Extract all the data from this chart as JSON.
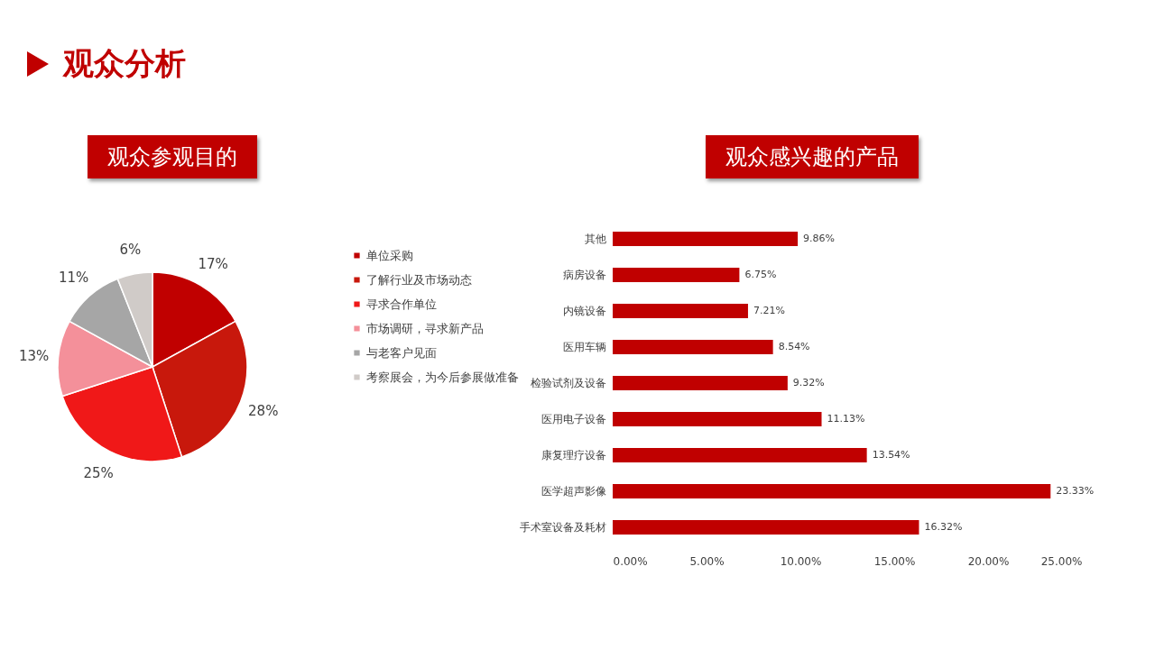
{
  "chart_data": [
    {
      "type": "other",
      "title": "观众分析"
    },
    {
      "type": "pie",
      "title": "观众参观目的",
      "categories": [
        "单位采购",
        "了解行业及市场动态",
        "寻求合作单位",
        "市场调研，寻求新产品",
        "与老客户见面",
        "考察展会，为今后参展做准备"
      ],
      "values": [
        17,
        28,
        25,
        13,
        11,
        6
      ],
      "value_labels": [
        "17%",
        "28%",
        "25%",
        "13%",
        "11%",
        "6%"
      ],
      "colors": [
        "#c00000",
        "#c8180c",
        "#f01818",
        "#f4909a",
        "#a6a6a6",
        "#d0cbc8"
      ],
      "legend": "right"
    },
    {
      "type": "bar",
      "orientation": "horizontal",
      "title": "观众感兴趣的产品",
      "categories": [
        "其他",
        "病房设备",
        "内镜设备",
        "医用车辆",
        "检验试剂及设备",
        "医用电子设备",
        "康复理疗设备",
        "医学超声影像",
        "手术室设备及耗材"
      ],
      "values": [
        9.86,
        6.75,
        7.21,
        8.54,
        9.32,
        11.13,
        13.54,
        23.33,
        16.32
      ],
      "value_labels": [
        "9.86%",
        "6.75%",
        "7.21%",
        "8.54%",
        "9.32%",
        "11.13%",
        "13.54%",
        "23.33%",
        "16.32%"
      ],
      "color": "#c00000",
      "xlim": [
        0,
        25
      ],
      "xticks": [
        {
          "value": 0,
          "label": "0.00%"
        },
        {
          "value": 5,
          "label": "5.00%"
        },
        {
          "value": 10,
          "label": "10.00%"
        },
        {
          "value": 15,
          "label": "15.00%"
        },
        {
          "value": 20,
          "label": "20.00%"
        },
        {
          "value": 25,
          "label": "25.00%"
        }
      ],
      "grid": false
    }
  ]
}
